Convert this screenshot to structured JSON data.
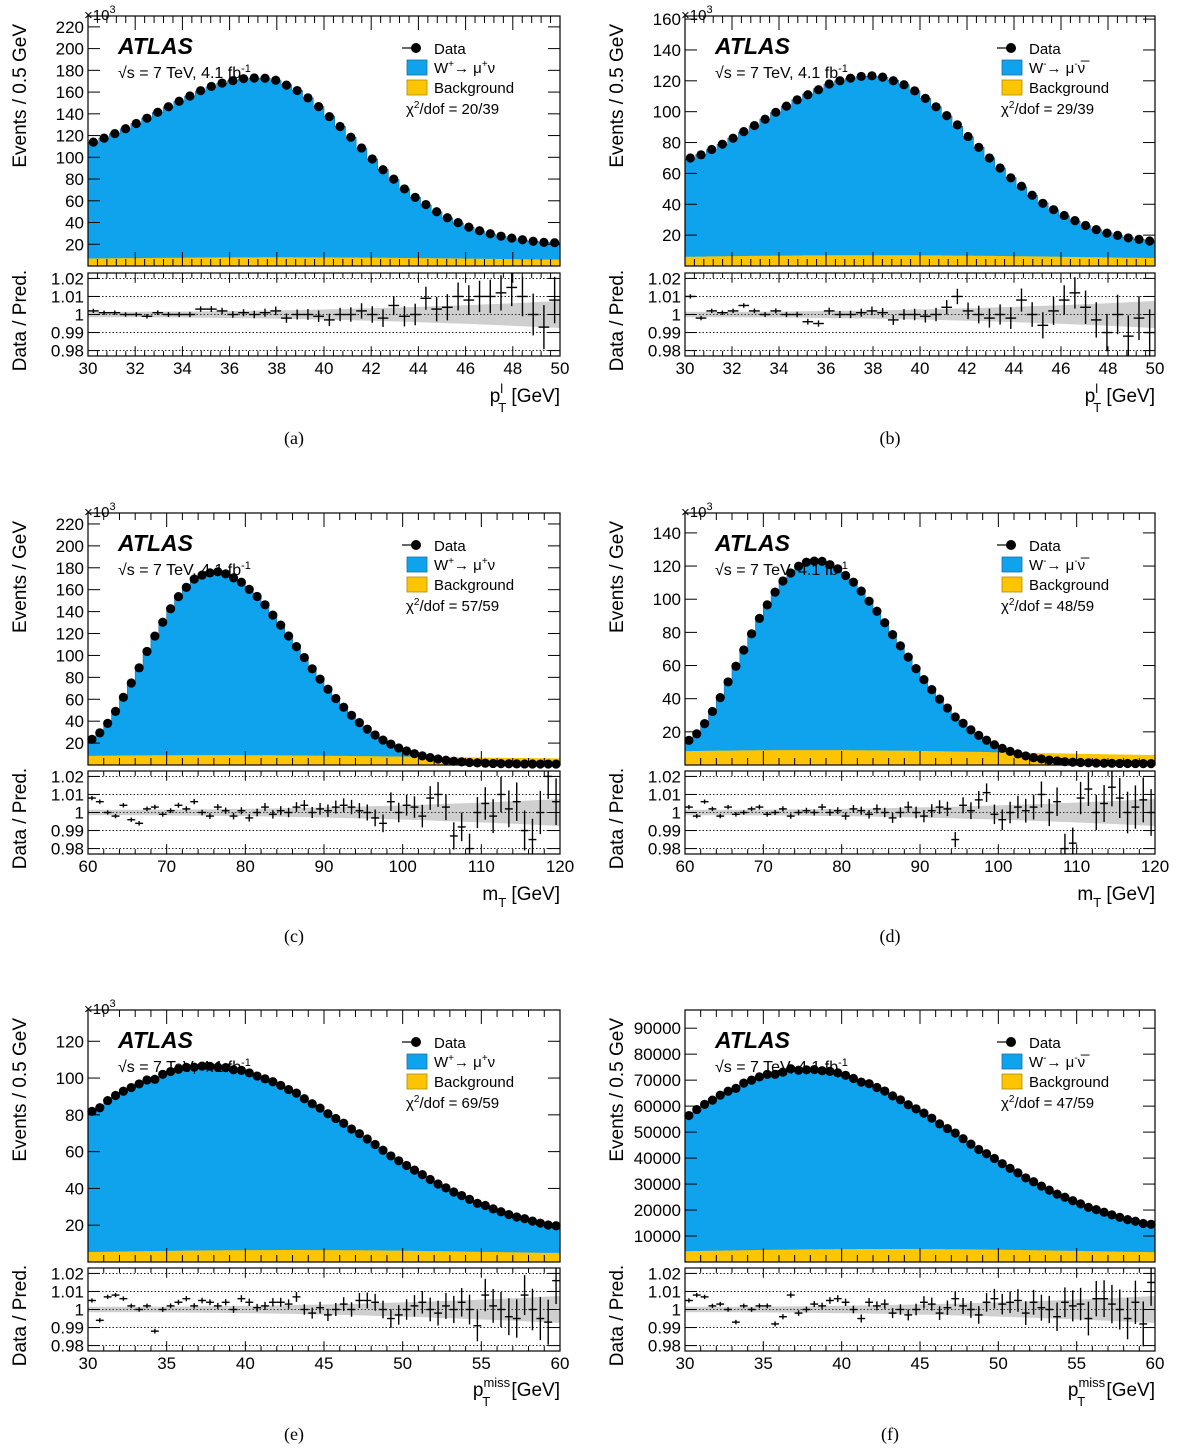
{
  "panels": [
    {
      "caption": "(a)",
      "y_label": "Events /  0.5 GeV",
      "exponent": "×10",
      "exponent_power": "3",
      "x_label": "p",
      "x_sub": "T",
      "x_sup": "l",
      "x_unit": " [GeV]",
      "ratio_label": "Data / Pred.",
      "signal_pre": "W",
      "signal_sup1": "+",
      "signal_mid": "→ μ",
      "signal_sup2": "+",
      "signal_post": "ν",
      "chi2": "/dof = 20/39"
    },
    {
      "caption": "(b)",
      "y_label": "Events /  0.5 GeV",
      "exponent": "×10",
      "exponent_power": "3",
      "x_label": "p",
      "x_sub": "T",
      "x_sup": "l",
      "x_unit": " [GeV]",
      "ratio_label": "Data / Pred.",
      "signal_pre": "W",
      "signal_sup1": "-",
      "signal_mid": "→ μ",
      "signal_sup2": "-",
      "signal_post": "ν̅",
      "chi2": "/dof = 29/39"
    },
    {
      "caption": "(c)",
      "y_label": "Events /  GeV",
      "exponent": "×10",
      "exponent_power": "3",
      "x_label": "m",
      "x_sub": "T",
      "x_sup": "",
      "x_unit": " [GeV]",
      "ratio_label": "Data / Pred.",
      "signal_pre": "W",
      "signal_sup1": "+",
      "signal_mid": "→ μ",
      "signal_sup2": "+",
      "signal_post": "ν",
      "chi2": "/dof = 57/59"
    },
    {
      "caption": "(d)",
      "y_label": "Events /  GeV",
      "exponent": "×10",
      "exponent_power": "3",
      "x_label": "m",
      "x_sub": "T",
      "x_sup": "",
      "x_unit": " [GeV]",
      "ratio_label": "Data / Pred.",
      "signal_pre": "W",
      "signal_sup1": "-",
      "signal_mid": "→ μ",
      "signal_sup2": "-",
      "signal_post": "ν̅",
      "chi2": "/dof = 48/59"
    },
    {
      "caption": "(e)",
      "y_label": "Events /  0.5 GeV",
      "exponent": "×10",
      "exponent_power": "3",
      "x_label": "p",
      "x_sub": "T",
      "x_sup": "miss",
      "x_unit": " [GeV]",
      "ratio_label": "Data / Pred.",
      "signal_pre": "W",
      "signal_sup1": "+",
      "signal_mid": "→ μ",
      "signal_sup2": "+",
      "signal_post": "ν",
      "chi2": "/dof = 69/59"
    },
    {
      "caption": "(f)",
      "y_label": "Events /  0.5 GeV",
      "exponent": "",
      "exponent_power": "",
      "x_label": "p",
      "x_sub": "T",
      "x_sup": "miss",
      "x_unit": " [GeV]",
      "ratio_label": "Data / Pred.",
      "signal_pre": "W",
      "signal_sup1": "-",
      "signal_mid": "→ μ",
      "signal_sup2": "-",
      "signal_post": "ν̅",
      "chi2": "/dof = 47/59"
    }
  ],
  "common": {
    "experiment": "ATLAS",
    "energy_text": "s = 7 TeV, 4.1 fb",
    "energy_sup": "-1",
    "sqrt_symbol": "√",
    "legend_data": "Data",
    "legend_background": "Background",
    "chi_symbol": "χ",
    "chi_sup": "2"
  },
  "colors": {
    "signal": "#0fa3ee",
    "background": "#fdc500",
    "band": "#cfcfcf",
    "data": "#000000"
  },
  "chart_data": [
    {
      "type": "area",
      "panel": "a",
      "xlim": [
        30,
        50
      ],
      "ylim": [
        0,
        230000
      ],
      "ratio_ylim": [
        0.977,
        1.023
      ],
      "x_ticks": [
        30,
        32,
        34,
        36,
        38,
        40,
        42,
        44,
        46,
        48,
        50
      ],
      "y_ticks": [
        20,
        40,
        60,
        80,
        100,
        120,
        140,
        160,
        180,
        200,
        220
      ],
      "ratio_ticks": [
        "0.98",
        "0.99",
        "1",
        "1.01",
        "1.02"
      ],
      "shape": {
        "kind": "peak",
        "start": 112000,
        "peak": 173000,
        "peak_x": 37.2,
        "end": 21000,
        "width": 4.2,
        "bkg": 8000
      },
      "ratio_points": [
        1.002,
        1.001,
        1.001,
        1.0,
        1.0,
        0.999,
        1.001,
        1.0,
        1.0,
        1.0,
        1.003,
        1.003,
        1.002,
        1.0,
        1.001,
        1.0,
        1.001,
        1.002,
        0.998,
        1.0,
        1.0,
        0.999,
        0.997,
        1.0,
        1.0,
        1.002,
        1.0,
        0.998,
        1.005,
        0.999,
        1.0,
        1.009,
        1.003,
        1.004,
        1.01,
        1.008,
        1.01,
        1.01,
        1.012,
        1.015,
        1.01,
        1.0,
        0.993,
        1.008
      ],
      "grid": true,
      "legend": "top-right"
    },
    {
      "type": "area",
      "panel": "b",
      "xlim": [
        30,
        50
      ],
      "ylim": [
        0,
        162000
      ],
      "ratio_ylim": [
        0.977,
        1.023
      ],
      "x_ticks": [
        30,
        32,
        34,
        36,
        38,
        40,
        42,
        44,
        46,
        48,
        50
      ],
      "y_ticks": [
        20,
        40,
        60,
        80,
        100,
        120,
        140,
        160
      ],
      "ratio_ticks": [
        "0.98",
        "0.99",
        "1",
        "1.01",
        "1.02"
      ],
      "shape": {
        "kind": "peak",
        "start": 68000,
        "peak": 123000,
        "peak_x": 37.9,
        "end": 16000,
        "width": 4.4,
        "bkg": 7000
      },
      "ratio_points": [
        1.01,
        0.998,
        1.002,
        1.001,
        1.002,
        1.005,
        1.002,
        1.0,
        1.002,
        1.0,
        1.0,
        0.996,
        0.995,
        1.002,
        1.0,
        1.0,
        1.001,
        1.002,
        1.001,
        0.997,
        1.0,
        1.0,
        0.999,
        1.0,
        1.004,
        1.01,
        1.002,
        1.0,
        0.998,
        1.0,
        0.998,
        1.008,
        1.0,
        0.994,
        1.002,
        1.008,
        1.012,
        1.004,
        0.997,
        0.99,
        1.0,
        0.988,
        0.998,
        0.99
      ],
      "grid": true,
      "legend": "top-right"
    },
    {
      "type": "area",
      "panel": "c",
      "xlim": [
        60,
        120
      ],
      "ylim": [
        0,
        230000
      ],
      "ratio_ylim": [
        0.977,
        1.023
      ],
      "x_ticks": [
        60,
        70,
        80,
        90,
        100,
        110,
        120
      ],
      "y_ticks": [
        20,
        40,
        60,
        80,
        100,
        120,
        140,
        160,
        180,
        200,
        220
      ],
      "ratio_ticks": [
        "0.98",
        "0.99",
        "1",
        "1.01",
        "1.02"
      ],
      "shape": {
        "kind": "jacobian",
        "start": 22000,
        "peak": 176000,
        "peak_x": 76,
        "end": 800,
        "bkg": 9000,
        "bkg_peak_x": 76
      },
      "ratio_points": [
        1.008,
        1.006,
        1.0,
        0.998,
        1.004,
        0.996,
        0.994,
        1.002,
        1.003,
        0.999,
        1.001,
        1.004,
        1.002,
        1.006,
        1.0,
        0.998,
        1.003,
        1.001,
        0.998,
        1.001,
        0.997,
        1.0,
        1.003,
        0.999,
        1.001,
        1.0,
        1.003,
        1.004,
        1.0,
        1.002,
        1.001,
        1.003,
        1.004,
        1.003,
        1.001,
        1.0,
        0.997,
        0.994,
        1.006,
        1.0,
        1.004,
        1.003,
        0.998,
        1.008,
        1.01,
        1.003,
        0.987,
        0.992,
        0.98,
        1.0,
        1.005,
        0.998,
        1.01,
        1.002,
        1.006,
        0.99,
        0.985,
        1.0,
        1.02,
        1.006
      ],
      "grid": true,
      "legend": "top-right"
    },
    {
      "type": "area",
      "panel": "d",
      "xlim": [
        60,
        120
      ],
      "ylim": [
        0,
        152000
      ],
      "ratio_ylim": [
        0.977,
        1.023
      ],
      "x_ticks": [
        60,
        70,
        80,
        90,
        100,
        110,
        120
      ],
      "y_ticks": [
        20,
        40,
        60,
        80,
        100,
        120,
        140
      ],
      "ratio_ticks": [
        "0.98",
        "0.99",
        "1",
        "1.01",
        "1.02"
      ],
      "shape": {
        "kind": "jacobian",
        "start": 14000,
        "peak": 123000,
        "peak_x": 76.5,
        "end": 800,
        "bkg": 9000,
        "bkg_peak_x": 76
      },
      "ratio_points": [
        1.003,
        0.998,
        1.006,
        1.002,
        0.998,
        1.003,
        0.999,
        1.0,
        1.002,
        1.003,
        0.999,
        1.0,
        1.002,
        0.998,
        1.0,
        1.001,
        1.0,
        1.003,
        1.0,
        1.001,
        0.998,
        1.002,
        1.001,
        0.999,
        1.002,
        1.0,
        0.997,
        1.0,
        1.003,
        1.0,
        0.998,
        1.001,
        1.003,
        1.002,
        0.985,
        1.004,
        1.001,
        1.007,
        1.011,
        0.999,
        0.996,
        1.0,
        1.003,
        1.001,
        1.003,
        1.01,
        1.0,
        1.006,
        0.98,
        0.983,
        1.008,
        1.013,
        1.0,
        1.005,
        1.014,
        1.008,
        1.0,
        1.003,
        1.007,
        1.0
      ],
      "grid": true,
      "legend": "top-right"
    },
    {
      "type": "area",
      "panel": "e",
      "xlim": [
        30,
        60
      ],
      "ylim": [
        0,
        137000
      ],
      "ratio_ylim": [
        0.977,
        1.023
      ],
      "x_ticks": [
        30,
        35,
        40,
        45,
        50,
        55,
        60
      ],
      "y_ticks": [
        20,
        40,
        60,
        80,
        100,
        120
      ],
      "ratio_ticks": [
        "0.98",
        "0.99",
        "1",
        "1.01",
        "1.02"
      ],
      "shape": {
        "kind": "peak",
        "start": 80000,
        "peak": 106000,
        "peak_x": 37.5,
        "end": 19000,
        "width": 9.8,
        "bkg": 6500
      },
      "ratio_points": [
        1.005,
        0.994,
        1.007,
        1.008,
        1.006,
        1.002,
        1.0,
        1.002,
        0.988,
        1.0,
        1.002,
        1.004,
        1.006,
        1.002,
        1.005,
        1.004,
        1.002,
        1.004,
        1.0,
        1.006,
        1.004,
        1.001,
        1.002,
        1.004,
        1.004,
        1.003,
        1.007,
        1.0,
        0.998,
        1.001,
        0.997,
        1.0,
        1.003,
        1.0,
        1.005,
        1.005,
        1.004,
        1.0,
        0.995,
        0.997,
        1.0,
        1.002,
        1.004,
        1.0,
        0.998,
        1.002,
        1.0,
        1.004,
        1.0,
        0.991,
        1.008,
        1.002,
        1.0,
        0.996,
        0.995,
        1.008,
        1.0,
        0.995,
        0.993,
        1.016
      ],
      "grid": true,
      "legend": "top-right"
    },
    {
      "type": "area",
      "panel": "f",
      "xlim": [
        30,
        60
      ],
      "ylim": [
        0,
        97000
      ],
      "ratio_ylim": [
        0.977,
        1.023
      ],
      "x_ticks": [
        30,
        35,
        40,
        45,
        50,
        55,
        60
      ],
      "y_ticks": [
        10000,
        20000,
        30000,
        40000,
        50000,
        60000,
        70000,
        80000,
        90000
      ],
      "ratio_ticks": [
        "0.98",
        "0.99",
        "1",
        "1.01",
        "1.02"
      ],
      "shape": {
        "kind": "peak",
        "start": 55000,
        "peak": 74000,
        "peak_x": 37.5,
        "end": 14000,
        "width": 10.0,
        "bkg": 5000
      },
      "ratio_points": [
        1.005,
        1.008,
        1.007,
        1.002,
        1.003,
        1.0,
        0.993,
        1.002,
        1.0,
        1.002,
        1.002,
        0.992,
        0.996,
        1.008,
        0.998,
        1.0,
        1.003,
        1.002,
        1.005,
        1.006,
        1.004,
        1.0,
        0.995,
        1.004,
        1.002,
        1.003,
        0.998,
        1.0,
        0.997,
        1.0,
        1.004,
        1.003,
        0.998,
        1.001,
        1.006,
        1.002,
        1.0,
        0.997,
        1.004,
        1.006,
        1.003,
        1.004,
        1.005,
        0.998,
        1.004,
        1.001,
        1.0,
        0.996,
        1.004,
        1.002,
        1.003,
        0.995,
        1.006,
        1.006,
        1.003,
        1.0,
        0.995,
        1.004,
        0.992,
        1.015
      ],
      "grid": true,
      "legend": "top-right"
    }
  ]
}
